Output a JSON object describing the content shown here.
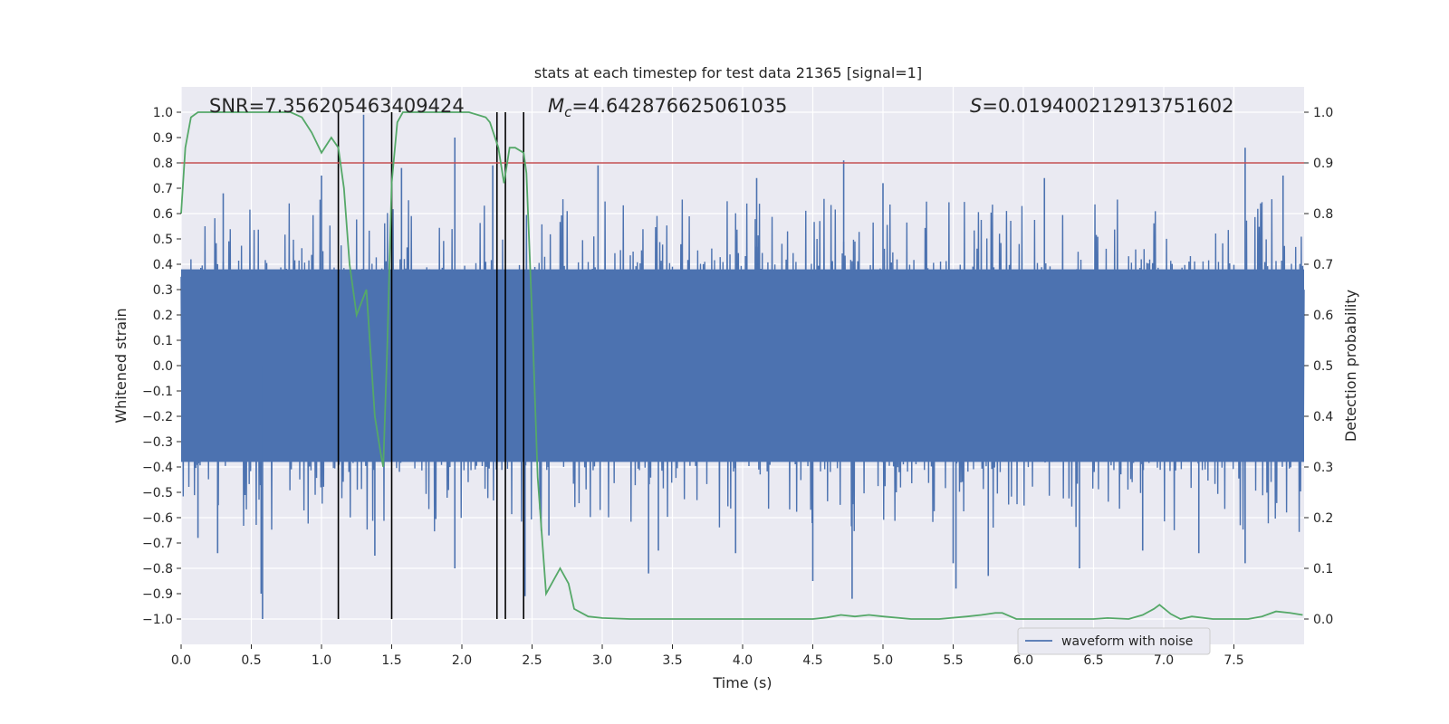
{
  "chart_data": {
    "type": "line",
    "title": "stats at each timestep for test data 21365 [signal=1]",
    "xlabel": "Time (s)",
    "ylabel": "Whitened strain",
    "y2label": "Detection probability",
    "xlim": [
      0.0,
      8.0
    ],
    "ylim": [
      -1.1,
      1.1
    ],
    "y2lim": [
      -0.05,
      1.05
    ],
    "xticks": [
      "0.0",
      "0.5",
      "1.0",
      "1.5",
      "2.0",
      "2.5",
      "3.0",
      "3.5",
      "4.0",
      "4.5",
      "5.0",
      "5.5",
      "6.0",
      "6.5",
      "7.0",
      "7.5"
    ],
    "yticks": [
      "1.0",
      "0.9",
      "0.8",
      "0.7",
      "0.6",
      "0.5",
      "0.4",
      "0.3",
      "0.2",
      "0.1",
      "0.0",
      "−0.1",
      "−0.2",
      "−0.3",
      "−0.4",
      "−0.5",
      "−0.6",
      "−0.7",
      "−0.8",
      "−0.9",
      "−1.0"
    ],
    "y2ticks": [
      "1.0",
      "0.9",
      "0.8",
      "0.7",
      "0.6",
      "0.5",
      "0.4",
      "0.3",
      "0.2",
      "0.1",
      "0.0"
    ],
    "grid": true,
    "legend_position": "bottom-right",
    "annotations": {
      "snr": "SNR=7.356205463409424",
      "mc_symbol": "M",
      "mc_sub": "c",
      "mc_value": "=4.642876625061035",
      "s_symbol": "S",
      "s_value": "=0.019400212913751602"
    },
    "threshold": {
      "value": 0.9,
      "axis": "y2",
      "color": "#c44e52"
    },
    "vertical_lines": [
      1.12,
      1.5,
      2.25,
      2.31,
      2.44
    ],
    "series": [
      {
        "name": "waveform with noise",
        "axis": "y",
        "color": "#4c72b0",
        "envelope_typical": 0.4,
        "peaks": [
          [
            0.58,
            -1.0
          ],
          [
            0.57,
            -0.9
          ],
          [
            0.26,
            -0.74
          ],
          [
            0.12,
            -0.68
          ],
          [
            0.3,
            0.68
          ],
          [
            1.3,
            0.99
          ],
          [
            1.38,
            -0.75
          ],
          [
            1.0,
            0.75
          ],
          [
            1.57,
            0.78
          ],
          [
            1.95,
            0.9
          ],
          [
            1.95,
            -0.8
          ],
          [
            2.45,
            -0.91
          ],
          [
            2.62,
            -0.67
          ],
          [
            2.97,
            0.79
          ],
          [
            3.33,
            -0.82
          ],
          [
            4.5,
            -0.85
          ],
          [
            4.72,
            0.81
          ],
          [
            4.78,
            -0.92
          ],
          [
            5.5,
            -0.78
          ],
          [
            5.52,
            -0.88
          ],
          [
            5.75,
            -0.83
          ],
          [
            6.4,
            -0.8
          ],
          [
            7.58,
            0.86
          ],
          [
            7.58,
            -0.78
          ],
          [
            7.85,
            0.75
          ],
          [
            2.22,
            0.79
          ],
          [
            4.1,
            0.74
          ],
          [
            3.95,
            -0.74
          ],
          [
            6.85,
            -0.73
          ],
          [
            7.25,
            -0.74
          ],
          [
            6.15,
            0.74
          ],
          [
            3.4,
            -0.73
          ],
          [
            5.0,
            0.72
          ]
        ]
      },
      {
        "name": "",
        "axis": "y2",
        "color": "#55a868",
        "x": [
          0.0,
          0.03,
          0.07,
          0.12,
          0.2,
          0.4,
          0.6,
          0.78,
          0.86,
          0.93,
          1.0,
          1.07,
          1.12,
          1.16,
          1.2,
          1.25,
          1.32,
          1.38,
          1.42,
          1.44,
          1.47,
          1.5,
          1.54,
          1.58,
          1.7,
          1.9,
          2.05,
          2.17,
          2.2,
          2.26,
          2.3,
          2.34,
          2.38,
          2.44,
          2.46,
          2.5,
          2.54,
          2.6,
          2.66,
          2.7,
          2.76,
          2.8,
          2.9,
          3.0,
          3.2,
          3.6,
          4.0,
          4.5,
          4.6,
          4.7,
          4.8,
          4.9,
          5.0,
          5.2,
          5.4,
          5.6,
          5.7,
          5.8,
          5.85,
          5.95,
          6.1,
          6.3,
          6.5,
          6.6,
          6.75,
          6.85,
          6.93,
          6.97,
          7.05,
          7.12,
          7.2,
          7.35,
          7.6,
          7.7,
          7.8,
          7.9,
          7.99
        ],
        "y": [
          0.8,
          0.93,
          0.99,
          1.0,
          1.0,
          1.0,
          1.0,
          1.0,
          0.99,
          0.96,
          0.92,
          0.95,
          0.93,
          0.85,
          0.7,
          0.6,
          0.65,
          0.4,
          0.33,
          0.3,
          0.55,
          0.86,
          0.98,
          1.0,
          1.0,
          1.0,
          1.0,
          0.99,
          0.98,
          0.93,
          0.86,
          0.93,
          0.93,
          0.92,
          0.88,
          0.6,
          0.28,
          0.05,
          0.08,
          0.1,
          0.07,
          0.02,
          0.005,
          0.002,
          0.0,
          0.0,
          0.0,
          0.0,
          0.003,
          0.008,
          0.005,
          0.008,
          0.005,
          0.0,
          0.0,
          0.005,
          0.008,
          0.012,
          0.012,
          0.0,
          0.0,
          0.0,
          0.0,
          0.002,
          0.0,
          0.008,
          0.02,
          0.028,
          0.01,
          0.0,
          0.005,
          0.0,
          0.0,
          0.005,
          0.015,
          0.012,
          0.008
        ]
      }
    ]
  }
}
